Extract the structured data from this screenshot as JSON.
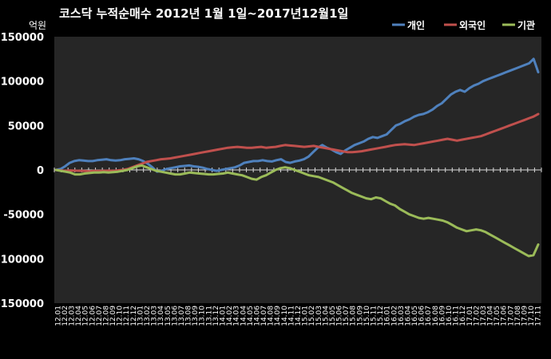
{
  "chart_data": {
    "type": "line",
    "title": "코스닥 누적순매수 2012년 1월 1일~2017년12월1일",
    "unit_label": "억원",
    "ylim": [
      -150000,
      150000
    ],
    "yticks": [
      150000,
      100000,
      50000,
      0,
      -50000,
      -100000,
      -150000
    ],
    "ytick_labels": [
      "150000",
      "100000",
      "50000",
      "0",
      "-50000",
      "-100000",
      "-150000"
    ],
    "grid": false,
    "legend_position": "top-right",
    "x_tick_labels": [
      "12.01",
      "12.02",
      "12.03",
      "12.04",
      "12.05",
      "12.06",
      "12.07",
      "12.08",
      "12.09",
      "12.10",
      "12.11",
      "12.12",
      "13.01",
      "13.02",
      "13.03",
      "13.04",
      "13.05",
      "13.06",
      "13.07",
      "13.08",
      "13.09",
      "13.10",
      "13.11",
      "13.12",
      "14.01",
      "14.02",
      "14.03",
      "14.04",
      "14.05",
      "14.06",
      "14.07",
      "14.08",
      "14.09",
      "14.10",
      "14.11",
      "14.12",
      "15.01",
      "15.02",
      "15.03",
      "15.04",
      "15.05",
      "15.06",
      "15.07",
      "15.08",
      "15.09",
      "15.10",
      "15.11",
      "15.12",
      "16.01",
      "16.02",
      "16.03",
      "16.04",
      "16.05",
      "16.06",
      "16.07",
      "16.08",
      "16.09",
      "16.10",
      "16.11",
      "16.12",
      "17.01",
      "17.02",
      "17.03",
      "17.04",
      "17.05",
      "17.06",
      "17.07",
      "17.08",
      "17.09",
      "17.10",
      "17.11"
    ],
    "series": [
      {
        "name": "개인",
        "color": "#4f81bd",
        "values": [
          0,
          1000,
          4000,
          8000,
          10000,
          11000,
          10500,
          10000,
          10000,
          11000,
          11500,
          12000,
          11000,
          10500,
          11000,
          12000,
          12500,
          13000,
          12000,
          10000,
          7000,
          3000,
          -2000,
          -1000,
          1000,
          2000,
          3000,
          4000,
          4500,
          5000,
          4000,
          3500,
          2500,
          1000,
          0,
          -1000,
          0,
          1000,
          2000,
          3000,
          5000,
          8000,
          9000,
          10000,
          10000,
          11000,
          10000,
          9500,
          11000,
          12000,
          9000,
          8000,
          9500,
          10500,
          12000,
          15000,
          20000,
          25000,
          28000,
          25000,
          23000,
          20000,
          18000,
          22000,
          25000,
          28000,
          30000,
          32000,
          35000,
          37000,
          36000,
          38000,
          40000,
          45000,
          50000,
          52000,
          55000,
          57000,
          60000,
          62000,
          63000,
          65000,
          68000,
          72000,
          75000,
          80000,
          85000,
          88000,
          90000,
          88000,
          92000,
          95000,
          97000,
          100000,
          102000,
          104000,
          106000,
          108000,
          110000,
          112000,
          114000,
          116000,
          118000,
          120000,
          125000,
          110000
        ]
      },
      {
        "name": "외국인",
        "color": "#c0504d",
        "values": [
          0,
          -500,
          -1000,
          -500,
          -800,
          -1000,
          -1200,
          -1500,
          -1000,
          -1200,
          -1000,
          -800,
          -1000,
          -500,
          0,
          1000,
          3000,
          5000,
          7000,
          9000,
          10000,
          11000,
          12000,
          12500,
          13000,
          14000,
          15000,
          16000,
          17000,
          18000,
          19000,
          20000,
          21000,
          22000,
          23000,
          24000,
          25000,
          25500,
          26000,
          25500,
          25000,
          25000,
          25500,
          26000,
          25000,
          25500,
          26000,
          27000,
          28000,
          27500,
          27000,
          26500,
          26000,
          26500,
          27000,
          26000,
          25000,
          24000,
          23000,
          22000,
          21000,
          20000,
          20000,
          20500,
          21000,
          22000,
          23000,
          24000,
          25000,
          26000,
          27000,
          28000,
          28500,
          29000,
          28500,
          28000,
          29000,
          30000,
          31000,
          32000,
          33000,
          34000,
          35000,
          34000,
          33000,
          34000,
          35000,
          36000,
          37000,
          38000,
          40000,
          42000,
          44000,
          46000,
          48000,
          50000,
          52000,
          54000,
          56000,
          58000,
          60000,
          63000
        ]
      },
      {
        "name": "기관",
        "color": "#9bbb59",
        "values": [
          0,
          -1000,
          -2000,
          -3000,
          -5000,
          -5000,
          -4000,
          -3500,
          -3000,
          -3000,
          -2500,
          -3000,
          -2500,
          -2000,
          -1000,
          0,
          2000,
          4000,
          5000,
          3000,
          1000,
          -1000,
          -2000,
          -3000,
          -4000,
          -5000,
          -5000,
          -4000,
          -3000,
          -3500,
          -4000,
          -4500,
          -5000,
          -5000,
          -4500,
          -4000,
          -3000,
          -4000,
          -5000,
          -6000,
          -8000,
          -10000,
          -11000,
          -8000,
          -6000,
          -3000,
          0,
          2000,
          3000,
          2000,
          0,
          -2000,
          -4000,
          -6000,
          -7000,
          -8000,
          -10000,
          -12000,
          -14000,
          -17000,
          -20000,
          -23000,
          -26000,
          -28000,
          -30000,
          -32000,
          -33000,
          -31000,
          -32000,
          -35000,
          -38000,
          -40000,
          -44000,
          -47000,
          -50000,
          -52000,
          -54000,
          -55000,
          -54000,
          -55000,
          -56000,
          -57000,
          -59000,
          -62000,
          -65000,
          -67000,
          -69000,
          -68000,
          -67000,
          -68000,
          -70000,
          -73000,
          -76000,
          -79000,
          -82000,
          -85000,
          -88000,
          -91000,
          -94000,
          -97000,
          -96000,
          -84000
        ]
      }
    ]
  }
}
